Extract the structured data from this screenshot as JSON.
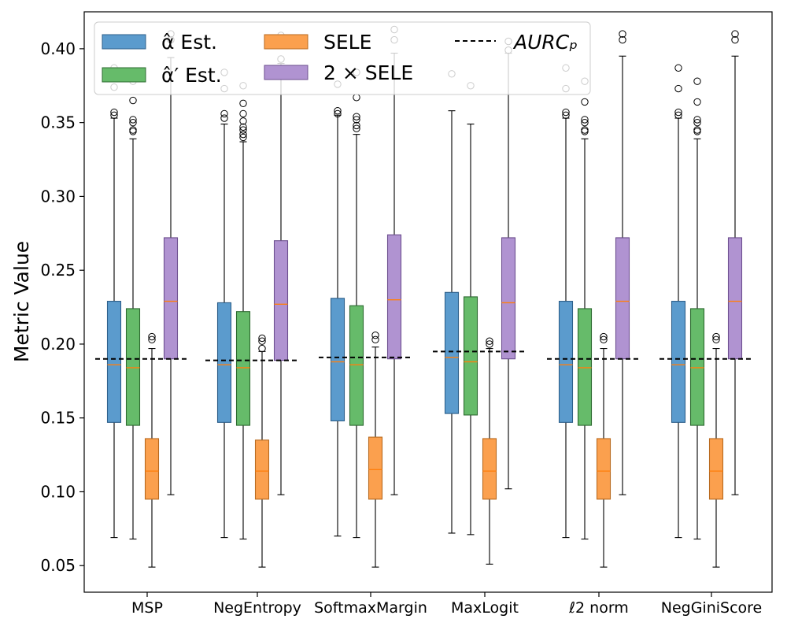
{
  "chart_data": {
    "type": "box",
    "ylabel": "Metric Value",
    "ylim": [
      0.032,
      0.425
    ],
    "yticks": [
      0.05,
      0.1,
      0.15,
      0.2,
      0.25,
      0.3,
      0.35,
      0.4
    ],
    "ytick_labels": [
      "0.05",
      "0.10",
      "0.15",
      "0.20",
      "0.25",
      "0.30",
      "0.35",
      "0.40"
    ],
    "categories": [
      "MSP",
      "NegEntropy",
      "SoftmaxMargin",
      "MaxLogit",
      "ℓ2 norm",
      "NegGiniScore"
    ],
    "legend": {
      "placement": "top-left",
      "entries": [
        {
          "key": "alpha",
          "label": "α̂ Est."
        },
        {
          "key": "alpha_prime",
          "label": "α̂′ Est."
        },
        {
          "key": "sele",
          "label": "SELE"
        },
        {
          "key": "sele2",
          "label": "2 × SELE"
        },
        {
          "key": "aurc",
          "label": "AURCₚ"
        }
      ]
    },
    "colors": {
      "alpha": {
        "fill": "#5b9bcd",
        "edge": "#2d5f8a"
      },
      "alpha_prime": {
        "fill": "#66bb6a",
        "edge": "#2e6b31"
      },
      "sele": {
        "fill": "#fba04e",
        "edge": "#b86a1f"
      },
      "sele2": {
        "fill": "#b093d1",
        "edge": "#6d4f8f"
      },
      "median": "#ff7f0e",
      "aurc_line": "#000000"
    },
    "series": [
      {
        "key": "alpha",
        "boxes": [
          {
            "wlo": 0.069,
            "q1": 0.147,
            "med": 0.186,
            "q3": 0.229,
            "whi": 0.353,
            "outliers": [
              0.355,
              0.357,
              0.374,
              0.387
            ]
          },
          {
            "wlo": 0.069,
            "q1": 0.147,
            "med": 0.186,
            "q3": 0.228,
            "whi": 0.349,
            "outliers": [
              0.353,
              0.356,
              0.373,
              0.384
            ]
          },
          {
            "wlo": 0.07,
            "q1": 0.148,
            "med": 0.188,
            "q3": 0.231,
            "whi": 0.355,
            "outliers": [
              0.356,
              0.358,
              0.376
            ]
          },
          {
            "wlo": 0.072,
            "q1": 0.153,
            "med": 0.191,
            "q3": 0.235,
            "whi": 0.358,
            "outliers": [
              0.383
            ]
          },
          {
            "wlo": 0.069,
            "q1": 0.147,
            "med": 0.186,
            "q3": 0.229,
            "whi": 0.353,
            "outliers": [
              0.355,
              0.357,
              0.373,
              0.387
            ]
          },
          {
            "wlo": 0.069,
            "q1": 0.147,
            "med": 0.186,
            "q3": 0.229,
            "whi": 0.353,
            "outliers": [
              0.355,
              0.357,
              0.373,
              0.387
            ]
          }
        ]
      },
      {
        "key": "alpha_prime",
        "boxes": [
          {
            "wlo": 0.068,
            "q1": 0.145,
            "med": 0.184,
            "q3": 0.224,
            "whi": 0.339,
            "outliers": [
              0.344,
              0.345,
              0.35,
              0.352,
              0.365,
              0.378
            ]
          },
          {
            "wlo": 0.068,
            "q1": 0.145,
            "med": 0.184,
            "q3": 0.222,
            "whi": 0.337,
            "outliers": [
              0.34,
              0.342,
              0.345,
              0.347,
              0.351,
              0.356,
              0.363,
              0.375
            ]
          },
          {
            "wlo": 0.069,
            "q1": 0.145,
            "med": 0.186,
            "q3": 0.226,
            "whi": 0.342,
            "outliers": [
              0.346,
              0.348,
              0.352,
              0.354,
              0.367,
              0.384
            ]
          },
          {
            "wlo": 0.071,
            "q1": 0.152,
            "med": 0.188,
            "q3": 0.232,
            "whi": 0.349,
            "outliers": [
              0.375
            ]
          },
          {
            "wlo": 0.068,
            "q1": 0.145,
            "med": 0.184,
            "q3": 0.224,
            "whi": 0.339,
            "outliers": [
              0.344,
              0.345,
              0.35,
              0.352,
              0.364,
              0.378
            ]
          },
          {
            "wlo": 0.068,
            "q1": 0.145,
            "med": 0.184,
            "q3": 0.224,
            "whi": 0.339,
            "outliers": [
              0.344,
              0.345,
              0.35,
              0.352,
              0.364,
              0.378
            ]
          }
        ]
      },
      {
        "key": "sele",
        "boxes": [
          {
            "wlo": 0.049,
            "q1": 0.095,
            "med": 0.114,
            "q3": 0.136,
            "whi": 0.197,
            "outliers": [
              0.203,
              0.205
            ]
          },
          {
            "wlo": 0.049,
            "q1": 0.095,
            "med": 0.114,
            "q3": 0.135,
            "whi": 0.195,
            "outliers": [
              0.197,
              0.202,
              0.204
            ]
          },
          {
            "wlo": 0.049,
            "q1": 0.095,
            "med": 0.115,
            "q3": 0.137,
            "whi": 0.198,
            "outliers": [
              0.203,
              0.206
            ]
          },
          {
            "wlo": 0.051,
            "q1": 0.095,
            "med": 0.114,
            "q3": 0.136,
            "whi": 0.197,
            "outliers": [
              0.2,
              0.202
            ]
          },
          {
            "wlo": 0.049,
            "q1": 0.095,
            "med": 0.114,
            "q3": 0.136,
            "whi": 0.197,
            "outliers": [
              0.203,
              0.205
            ]
          },
          {
            "wlo": 0.049,
            "q1": 0.095,
            "med": 0.114,
            "q3": 0.136,
            "whi": 0.197,
            "outliers": [
              0.203,
              0.205
            ]
          }
        ]
      },
      {
        "key": "sele2",
        "boxes": [
          {
            "wlo": 0.098,
            "q1": 0.19,
            "med": 0.229,
            "q3": 0.272,
            "whi": 0.394,
            "outliers": [
              0.406,
              0.41
            ]
          },
          {
            "wlo": 0.098,
            "q1": 0.189,
            "med": 0.227,
            "q3": 0.27,
            "whi": 0.39,
            "outliers": [
              0.393,
              0.405,
              0.409
            ]
          },
          {
            "wlo": 0.098,
            "q1": 0.19,
            "med": 0.23,
            "q3": 0.274,
            "whi": 0.397,
            "outliers": [
              0.406,
              0.413
            ]
          },
          {
            "wlo": 0.102,
            "q1": 0.19,
            "med": 0.228,
            "q3": 0.272,
            "whi": 0.397,
            "outliers": [
              0.399,
              0.405
            ]
          },
          {
            "wlo": 0.098,
            "q1": 0.19,
            "med": 0.229,
            "q3": 0.272,
            "whi": 0.395,
            "outliers": [
              0.406,
              0.41
            ]
          },
          {
            "wlo": 0.098,
            "q1": 0.19,
            "med": 0.229,
            "q3": 0.272,
            "whi": 0.395,
            "outliers": [
              0.406,
              0.41
            ]
          }
        ]
      }
    ],
    "aurc_p": [
      0.19,
      0.189,
      0.191,
      0.195,
      0.19,
      0.19
    ]
  }
}
